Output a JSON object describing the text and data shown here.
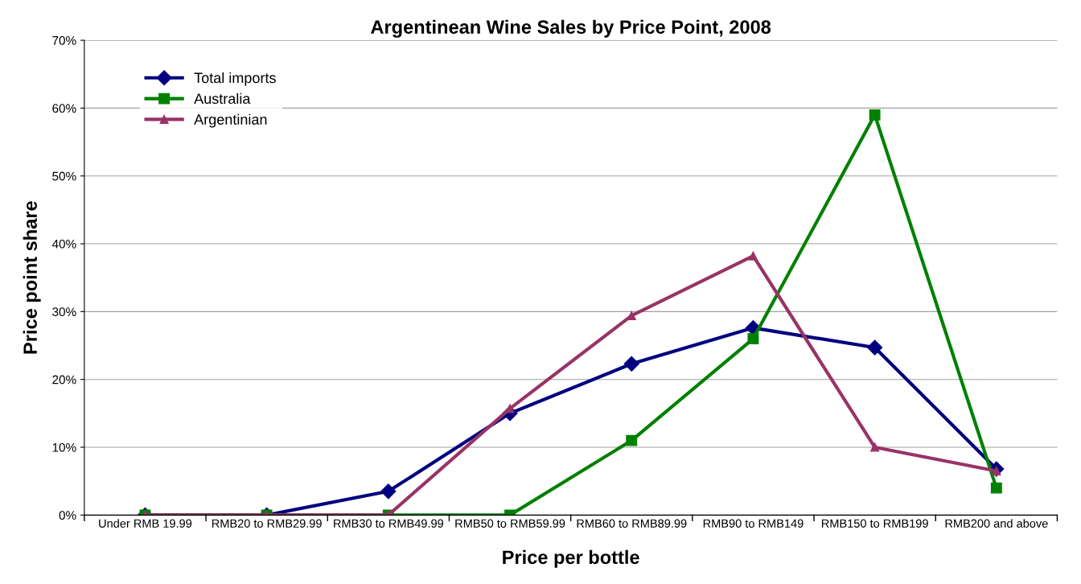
{
  "chart_data": {
    "type": "line",
    "title": "Argentinean Wine Sales by Price Point, 2008",
    "xlabel": "Price per bottle",
    "ylabel": "Price point share",
    "categories": [
      "Under RMB 19.99",
      "RMB20 to RMB29.99",
      "RMB30 to RMB49.99",
      "RMB50 to RMB59.99",
      "RMB60 to RMB89.99",
      "RMB90 to RMB149",
      "RMB150 to RMB199",
      "RMB200 and above"
    ],
    "series": [
      {
        "name": "Total imports",
        "color": "#000080",
        "marker": "diamond",
        "values": [
          0,
          0,
          3.5,
          15,
          22.3,
          27.6,
          24.7,
          6.8
        ]
      },
      {
        "name": "Australia",
        "color": "#008000",
        "marker": "square",
        "values": [
          0,
          0,
          0,
          0,
          11,
          26,
          59,
          4
        ]
      },
      {
        "name": "Argentinian",
        "color": "#993366",
        "marker": "triangle",
        "values": [
          0,
          0,
          0,
          15.7,
          29.4,
          38.2,
          10,
          6.5
        ]
      }
    ],
    "ylim": [
      0,
      70
    ],
    "yticks": [
      {
        "value": 0,
        "label": "0%"
      },
      {
        "value": 10,
        "label": "10%"
      },
      {
        "value": 20,
        "label": "20%"
      },
      {
        "value": 30,
        "label": "30%"
      },
      {
        "value": 40,
        "label": "40%"
      },
      {
        "value": 50,
        "label": "50%"
      },
      {
        "value": 60,
        "label": "60%"
      },
      {
        "value": 70,
        "label": "70%"
      }
    ],
    "grid": "y",
    "legend": "top left"
  }
}
